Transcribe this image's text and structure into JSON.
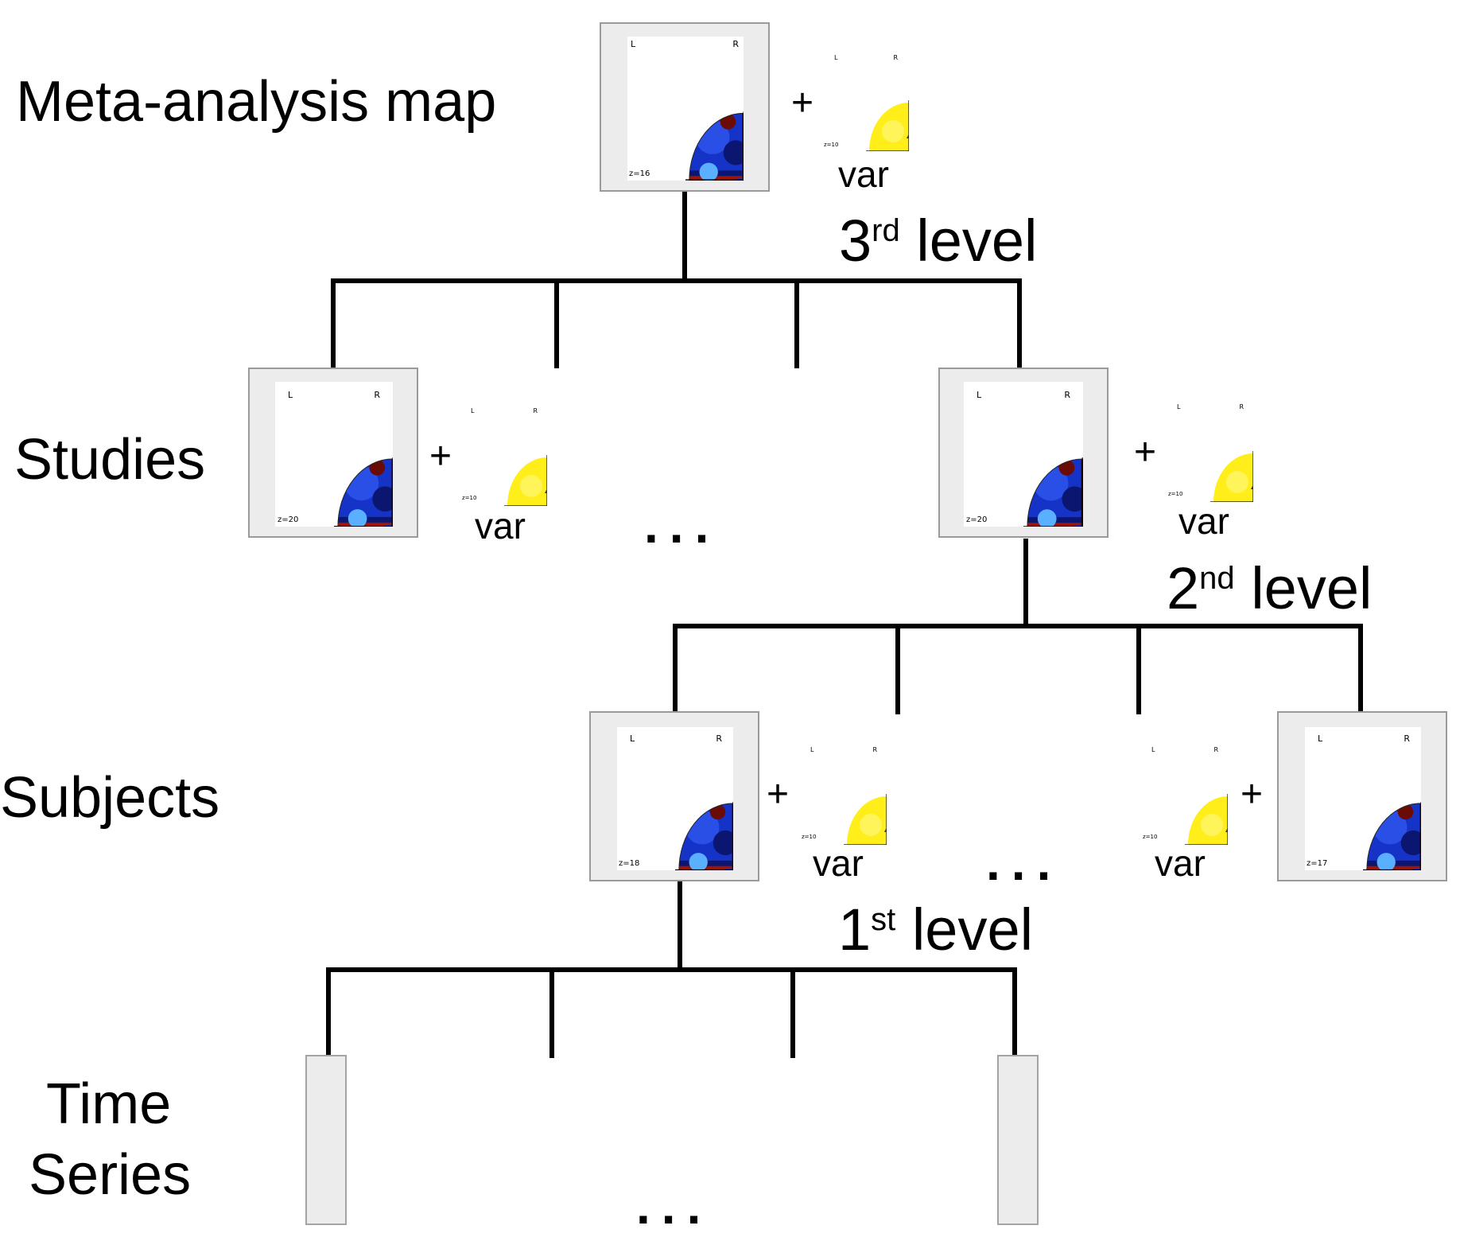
{
  "rows": {
    "meta": "Meta-analysis map",
    "studies": "Studies",
    "subjects": "Subjects",
    "time_series_line1": "Time",
    "time_series_line2": "Series"
  },
  "levels": {
    "third": {
      "num": "3",
      "suffix": "rd",
      "word": "level"
    },
    "second": {
      "num": "2",
      "suffix": "nd",
      "word": "level"
    },
    "first": {
      "num": "1",
      "suffix": "st",
      "word": "level"
    }
  },
  "var_label": "var",
  "plus": "+",
  "ellipsis": "...",
  "orientation": {
    "left": "L",
    "right": "R"
  },
  "slices": {
    "meta": "z=16",
    "study_a": "z=20",
    "study_b": "z=20",
    "subject_a": "z=18",
    "subject_b": "z=17",
    "variance": "z=10"
  },
  "colors": {
    "tree_line": "#000000",
    "frame_bg": "#ececec",
    "frame_border": "#9a9a9a",
    "brain_red": "#d42a10",
    "brain_dark_red": "#6a0c05",
    "brain_blue": "#1633c8",
    "brain_dark_blue": "#0a1670",
    "variance_yellow": "#fff22a"
  }
}
